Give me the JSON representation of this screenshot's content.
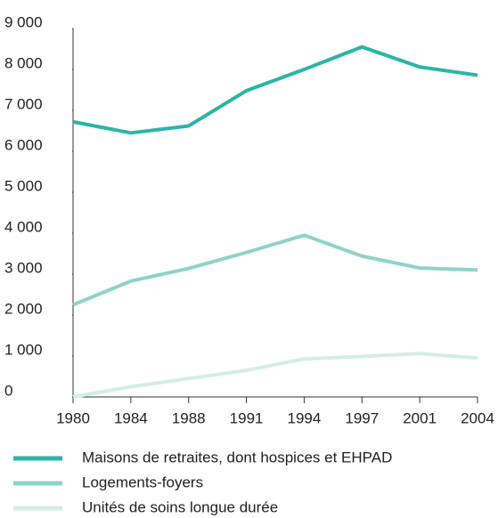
{
  "chart_data": {
    "type": "line",
    "categories": [
      "1980",
      "1984",
      "1988",
      "1991",
      "1994",
      "1997",
      "2001",
      "2004"
    ],
    "series": [
      {
        "name": "Maisons de retraites, dont hospices et EHPAD",
        "color": "#2bb5a5",
        "values": [
          6720,
          6450,
          6620,
          7480,
          8000,
          8550,
          8060,
          7860
        ]
      },
      {
        "name": "Logements-foyers",
        "color": "#8fd3c8",
        "values": [
          2250,
          2830,
          3140,
          3530,
          3950,
          3440,
          3150,
          3100
        ]
      },
      {
        "name": "Unités de soins longue durée",
        "color": "#d3ede9",
        "values": [
          0,
          250,
          450,
          650,
          930,
          990,
          1060,
          950
        ]
      }
    ],
    "ylim": [
      0,
      9000
    ],
    "yticks": [
      {
        "value": 0,
        "label": "0"
      },
      {
        "value": 1000,
        "label": "1 000"
      },
      {
        "value": 2000,
        "label": "2 000"
      },
      {
        "value": 3000,
        "label": "3 000"
      },
      {
        "value": 4000,
        "label": "4 000"
      },
      {
        "value": 5000,
        "label": "5 000"
      },
      {
        "value": 6000,
        "label": "6 000"
      },
      {
        "value": 7000,
        "label": "7 000"
      },
      {
        "value": 8000,
        "label": "8 000"
      },
      {
        "value": 9000,
        "label": "9 000"
      }
    ],
    "legend": "bottom"
  }
}
